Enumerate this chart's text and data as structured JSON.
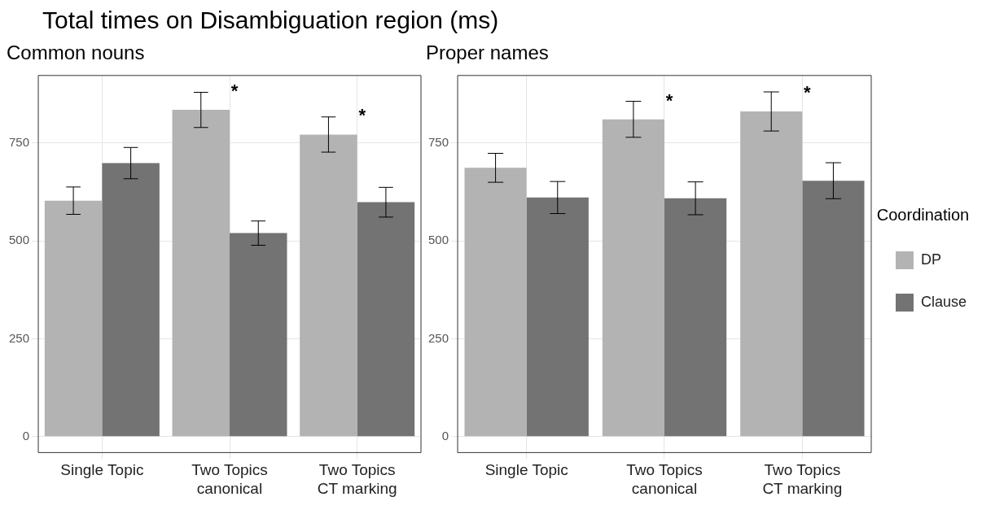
{
  "chart_data": [
    {
      "type": "bar",
      "title": "Total times on Disambiguation region (ms)",
      "subtitle": "Common nouns",
      "categories": [
        "Single Topic",
        "Two Topics\ncanonical",
        "Two Topics\nCT marking"
      ],
      "series": [
        {
          "color": "#b3b3b3",
          "values": [
            603,
            835,
            772
          ],
          "errors": [
            35,
            45,
            45
          ]
        },
        {
          "color": "#737373",
          "values": [
            699,
            520,
            599
          ],
          "errors": [
            40,
            31,
            38
          ]
        }
      ],
      "ylim": [
        -41,
        923
      ],
      "yticks": [
        0,
        250,
        500,
        750
      ],
      "grid": true,
      "legend": false,
      "annotations": [
        {
          "text": "*",
          "x": "Two Topics\ncanonical",
          "y": 835
        },
        {
          "text": "*",
          "x": "Two Topics\nCT marking",
          "y": 772
        }
      ]
    },
    {
      "type": "bar",
      "subtitle": "Proper names",
      "categories": [
        "Single Topic",
        "Two Topics\ncanonical",
        "Two Topics\nCT marking"
      ],
      "series": [
        {
          "name": "DP",
          "color": "#b3b3b3",
          "values": [
            687,
            811,
            831
          ],
          "errors": [
            37,
            46,
            50
          ]
        },
        {
          "name": "Clause",
          "color": "#737373",
          "values": [
            611,
            609,
            654
          ],
          "errors": [
            41,
            42,
            46
          ]
        }
      ],
      "ylim": [
        -41,
        923
      ],
      "yticks": [
        0,
        250,
        500,
        750
      ],
      "grid": true,
      "legend": "right",
      "legend_title": "Coordination",
      "annotations": [
        {
          "text": "*",
          "x": "Two Topics\ncanonical",
          "y": 811
        },
        {
          "text": "*",
          "x": "Two Topics\nCT marking",
          "y": 831
        }
      ]
    }
  ]
}
